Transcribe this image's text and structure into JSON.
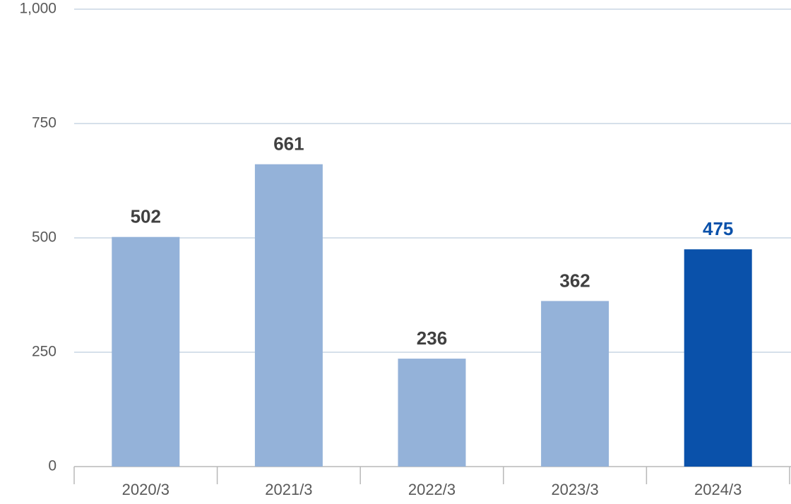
{
  "chart_data": {
    "type": "bar",
    "categories": [
      "2020/3",
      "2021/3",
      "2022/3",
      "2023/3",
      "2024/3"
    ],
    "values": [
      502,
      661,
      236,
      362,
      475
    ],
    "colors": [
      "#94b2d9",
      "#94b2d9",
      "#94b2d9",
      "#94b2d9",
      "#0a51aa"
    ],
    "label_colors": [
      "#404040",
      "#404040",
      "#404040",
      "#404040",
      "#0a51aa"
    ],
    "ylim": [
      0,
      1000
    ],
    "yticks": [
      0,
      250,
      500,
      750,
      {
        "value": 1000,
        "label": "1,000"
      }
    ],
    "grid": true
  }
}
